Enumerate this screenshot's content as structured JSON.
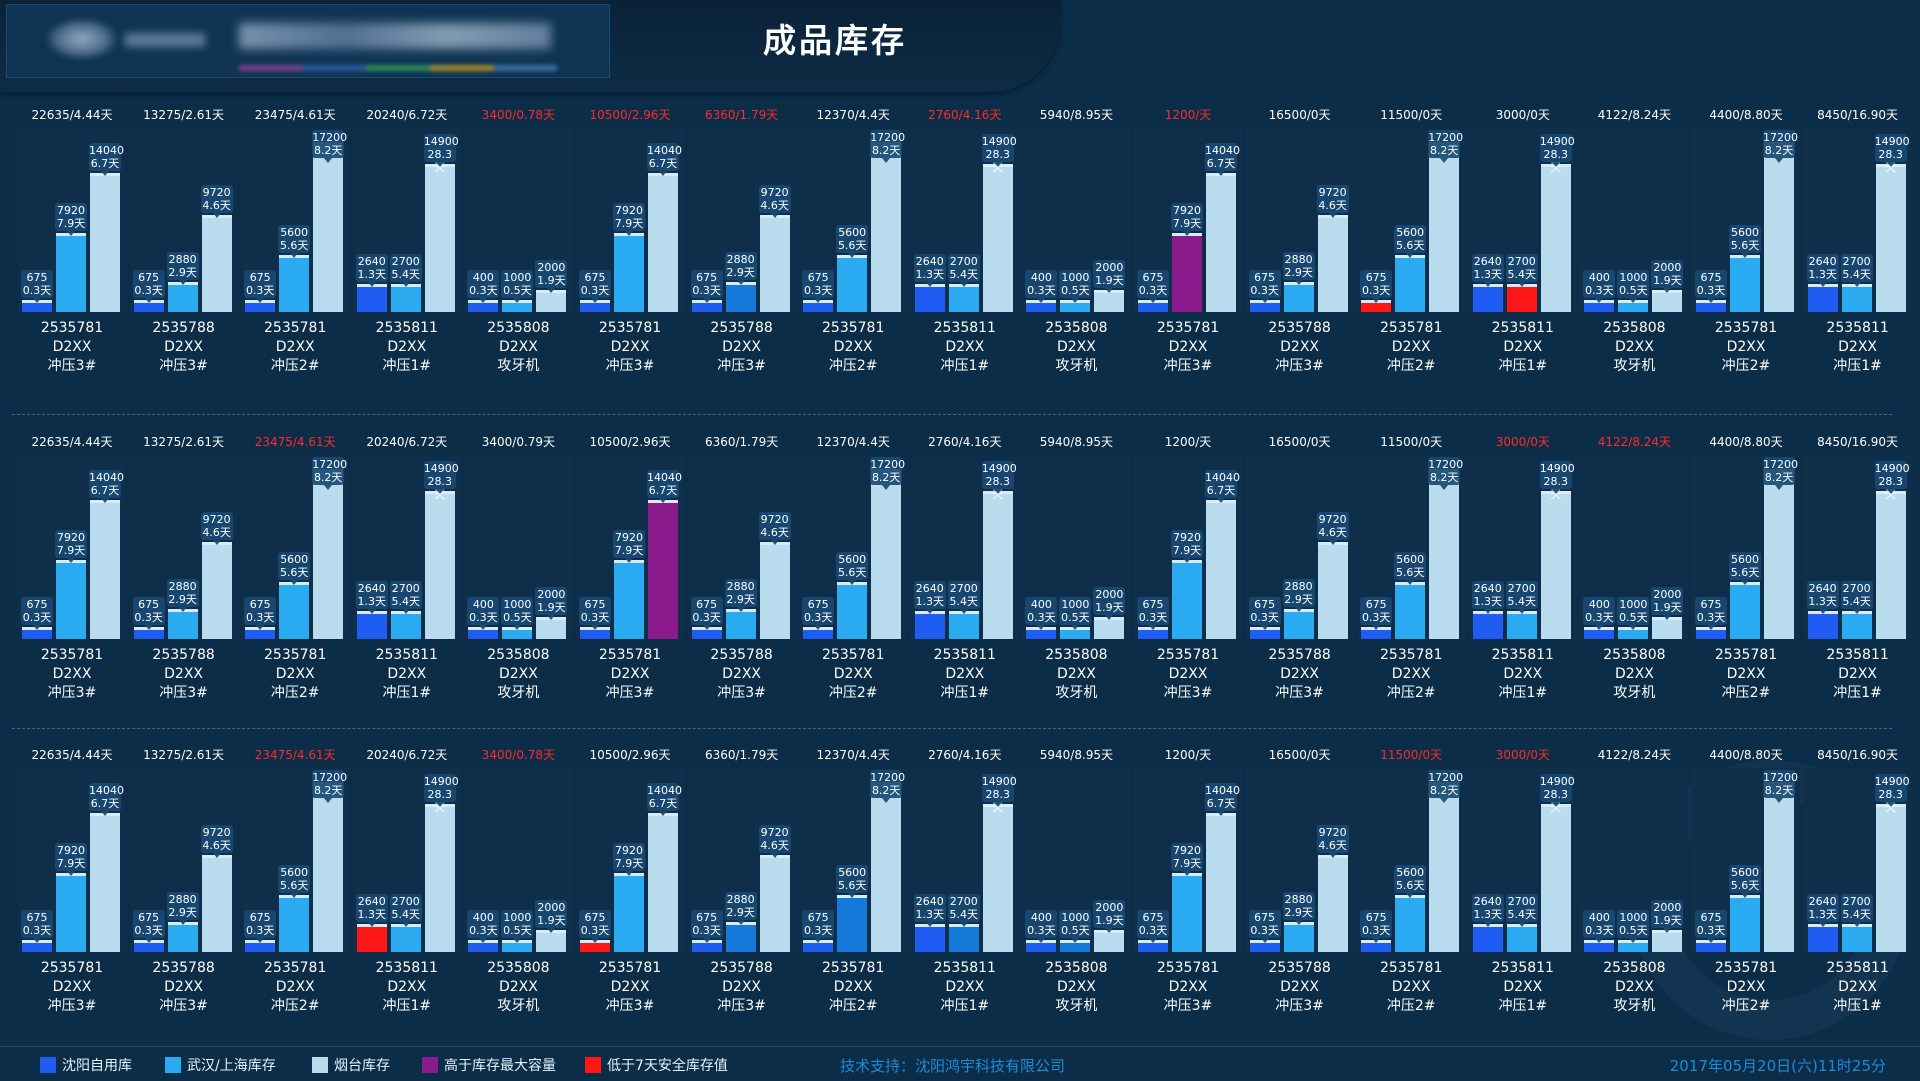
{
  "header": {
    "title": "成品库存"
  },
  "legend": [
    {
      "label": "沈阳自用库",
      "color": "#1f5df2"
    },
    {
      "label": "武汉/上海库存",
      "color": "#2aaaf0"
    },
    {
      "label": "烟台库存",
      "color": "#b9dcee"
    },
    {
      "label": "高于库存最大容量",
      "color": "#8b1a8c"
    },
    {
      "label": "低于7天安全库存值",
      "color": "#ff1616"
    }
  ],
  "footer": {
    "tech_support": "技术支持：沈阳鸿宇科技有限公司",
    "timestamp": "2017年05月20日(六)11时25分"
  },
  "colors": {
    "shenyang": "#1f5df2",
    "wuhan_shanghai": "#2aaaf0",
    "yantai": "#b9dcee",
    "over_capacity": "#8b1a8c",
    "below_safety": "#ff1616",
    "alert_text": "#ff2a2a"
  },
  "product_types": [
    {
      "id": "2535781",
      "model": "D2XX",
      "process": "冲压3#",
      "bars": [
        {
          "v": 675,
          "d": "0.3天"
        },
        {
          "v": 7920,
          "d": "7.9天"
        },
        {
          "v": 14040,
          "d": "6.7天"
        }
      ]
    },
    {
      "id": "2535788",
      "model": "D2XX",
      "process": "冲压3#",
      "bars": [
        {
          "v": 675,
          "d": "0.3天"
        },
        {
          "v": 2880,
          "d": "2.9天"
        },
        {
          "v": 9720,
          "d": "4.6天"
        }
      ]
    },
    {
      "id": "2535781",
      "model": "D2XX",
      "process": "冲压2#",
      "bars": [
        {
          "v": 675,
          "d": "0.3天"
        },
        {
          "v": 5600,
          "d": "5.6天"
        },
        {
          "v": 17200,
          "d": "8.2天"
        }
      ]
    },
    {
      "id": "2535811",
      "model": "D2XX",
      "process": "冲压1#",
      "bars": [
        {
          "v": 2640,
          "d": "1.3天"
        },
        {
          "v": 2700,
          "d": "5.4天"
        },
        {
          "v": 14900,
          "d": "28.3天"
        }
      ]
    },
    {
      "id": "2535808",
      "model": "D2XX",
      "process": "攻牙机",
      "bars": [
        {
          "v": 400,
          "d": "0.3天"
        },
        {
          "v": 1000,
          "d": "0.5天"
        },
        {
          "v": 2000,
          "d": "1.9天"
        }
      ]
    }
  ],
  "rows": [
    {
      "columns": [
        {
          "summary": "22635/4.44天",
          "alert": false,
          "type": 0,
          "flags": [
            "",
            "",
            ""
          ]
        },
        {
          "summary": "13275/2.61天",
          "alert": false,
          "type": 1,
          "flags": [
            "",
            "",
            ""
          ]
        },
        {
          "summary": "23475/4.61天",
          "alert": false,
          "type": 2,
          "flags": [
            "",
            "",
            ""
          ]
        },
        {
          "summary": "20240/6.72天",
          "alert": false,
          "type": 3,
          "flags": [
            "",
            "",
            ""
          ]
        },
        {
          "summary": "3400/0.78天",
          "alert": true,
          "type": 4,
          "flags": [
            "",
            "",
            ""
          ]
        },
        {
          "summary": "10500/2.96天",
          "alert": true,
          "type": 0,
          "flags": [
            "",
            "",
            ""
          ]
        },
        {
          "summary": "6360/1.79天",
          "alert": true,
          "type": 1,
          "flags": [
            "",
            "dark",
            ""
          ]
        },
        {
          "summary": "12370/4.4天",
          "alert": false,
          "type": 2,
          "flags": [
            "",
            "",
            ""
          ]
        },
        {
          "summary": "2760/4.16天",
          "alert": true,
          "type": 3,
          "flags": [
            "",
            "",
            ""
          ]
        },
        {
          "summary": "5940/8.95天",
          "alert": false,
          "type": 4,
          "flags": [
            "",
            "",
            ""
          ]
        },
        {
          "summary": "1200/天",
          "alert": true,
          "type": 0,
          "flags": [
            "",
            "purple",
            ""
          ]
        },
        {
          "summary": "16500/0天",
          "alert": false,
          "type": 1,
          "flags": [
            "",
            "",
            ""
          ]
        },
        {
          "summary": "11500/0天",
          "alert": false,
          "type": 2,
          "flags": [
            "red",
            "",
            ""
          ]
        },
        {
          "summary": "3000/0天",
          "alert": false,
          "type": 3,
          "flags": [
            "",
            "red",
            ""
          ]
        },
        {
          "summary": "4122/8.24天",
          "alert": false,
          "type": 4,
          "flags": [
            "",
            "",
            ""
          ]
        },
        {
          "summary": "4400/8.80天",
          "alert": false,
          "type": 2,
          "flags": [
            "",
            "",
            ""
          ]
        },
        {
          "summary": "8450/16.90天",
          "alert": false,
          "type": 3,
          "flags": [
            "",
            "",
            ""
          ]
        }
      ]
    },
    {
      "columns": [
        {
          "summary": "22635/4.44天",
          "alert": false,
          "type": 0,
          "flags": [
            "",
            "",
            ""
          ]
        },
        {
          "summary": "13275/2.61天",
          "alert": false,
          "type": 1,
          "flags": [
            "",
            "",
            ""
          ]
        },
        {
          "summary": "23475/4.61天",
          "alert": true,
          "type": 2,
          "flags": [
            "",
            "",
            ""
          ]
        },
        {
          "summary": "20240/6.72天",
          "alert": false,
          "type": 3,
          "flags": [
            "",
            "",
            ""
          ]
        },
        {
          "summary": "3400/0.79天",
          "alert": false,
          "type": 4,
          "flags": [
            "",
            "",
            ""
          ]
        },
        {
          "summary": "10500/2.96天",
          "alert": false,
          "type": 0,
          "flags": [
            "",
            "",
            "purple"
          ]
        },
        {
          "summary": "6360/1.79天",
          "alert": false,
          "type": 1,
          "flags": [
            "",
            "",
            ""
          ]
        },
        {
          "summary": "12370/4.4天",
          "alert": false,
          "type": 2,
          "flags": [
            "",
            "",
            ""
          ]
        },
        {
          "summary": "2760/4.16天",
          "alert": false,
          "type": 3,
          "flags": [
            "",
            "",
            ""
          ]
        },
        {
          "summary": "5940/8.95天",
          "alert": false,
          "type": 4,
          "flags": [
            "",
            "",
            ""
          ]
        },
        {
          "summary": "1200/天",
          "alert": false,
          "type": 0,
          "flags": [
            "",
            "",
            ""
          ]
        },
        {
          "summary": "16500/0天",
          "alert": false,
          "type": 1,
          "flags": [
            "",
            "",
            ""
          ]
        },
        {
          "summary": "11500/0天",
          "alert": false,
          "type": 2,
          "flags": [
            "",
            "",
            ""
          ]
        },
        {
          "summary": "3000/0天",
          "alert": true,
          "type": 3,
          "flags": [
            "",
            "",
            ""
          ]
        },
        {
          "summary": "4122/8.24天",
          "alert": true,
          "type": 4,
          "flags": [
            "",
            "",
            ""
          ]
        },
        {
          "summary": "4400/8.80天",
          "alert": false,
          "type": 2,
          "flags": [
            "",
            "",
            ""
          ]
        },
        {
          "summary": "8450/16.90天",
          "alert": false,
          "type": 3,
          "flags": [
            "",
            "",
            ""
          ]
        }
      ]
    },
    {
      "columns": [
        {
          "summary": "22635/4.44天",
          "alert": false,
          "type": 0,
          "flags": [
            "",
            "",
            ""
          ]
        },
        {
          "summary": "13275/2.61天",
          "alert": false,
          "type": 1,
          "flags": [
            "",
            "",
            ""
          ]
        },
        {
          "summary": "23475/4.61天",
          "alert": true,
          "type": 2,
          "flags": [
            "",
            "",
            ""
          ]
        },
        {
          "summary": "20240/6.72天",
          "alert": false,
          "type": 3,
          "flags": [
            "red",
            "",
            ""
          ]
        },
        {
          "summary": "3400/0.78天",
          "alert": true,
          "type": 4,
          "flags": [
            "",
            "",
            ""
          ]
        },
        {
          "summary": "10500/2.96天",
          "alert": false,
          "type": 0,
          "flags": [
            "red",
            "",
            ""
          ]
        },
        {
          "summary": "6360/1.79天",
          "alert": false,
          "type": 1,
          "flags": [
            "",
            "dark",
            ""
          ]
        },
        {
          "summary": "12370/4.4天",
          "alert": false,
          "type": 2,
          "flags": [
            "",
            "dark",
            ""
          ]
        },
        {
          "summary": "2760/4.16天",
          "alert": false,
          "type": 3,
          "flags": [
            "",
            "dark",
            ""
          ]
        },
        {
          "summary": "5940/8.95天",
          "alert": false,
          "type": 4,
          "flags": [
            "",
            "dark",
            ""
          ]
        },
        {
          "summary": "1200/天",
          "alert": false,
          "type": 0,
          "flags": [
            "",
            "",
            ""
          ]
        },
        {
          "summary": "16500/0天",
          "alert": false,
          "type": 1,
          "flags": [
            "",
            "",
            ""
          ]
        },
        {
          "summary": "11500/0天",
          "alert": true,
          "type": 2,
          "flags": [
            "",
            "",
            ""
          ]
        },
        {
          "summary": "3000/0天",
          "alert": true,
          "type": 3,
          "flags": [
            "",
            "",
            ""
          ]
        },
        {
          "summary": "4122/8.24天",
          "alert": false,
          "type": 4,
          "flags": [
            "",
            "",
            ""
          ]
        },
        {
          "summary": "4400/8.80天",
          "alert": false,
          "type": 2,
          "flags": [
            "",
            "",
            ""
          ]
        },
        {
          "summary": "8450/16.90天",
          "alert": false,
          "type": 3,
          "flags": [
            "",
            "",
            ""
          ]
        }
      ]
    }
  ]
}
